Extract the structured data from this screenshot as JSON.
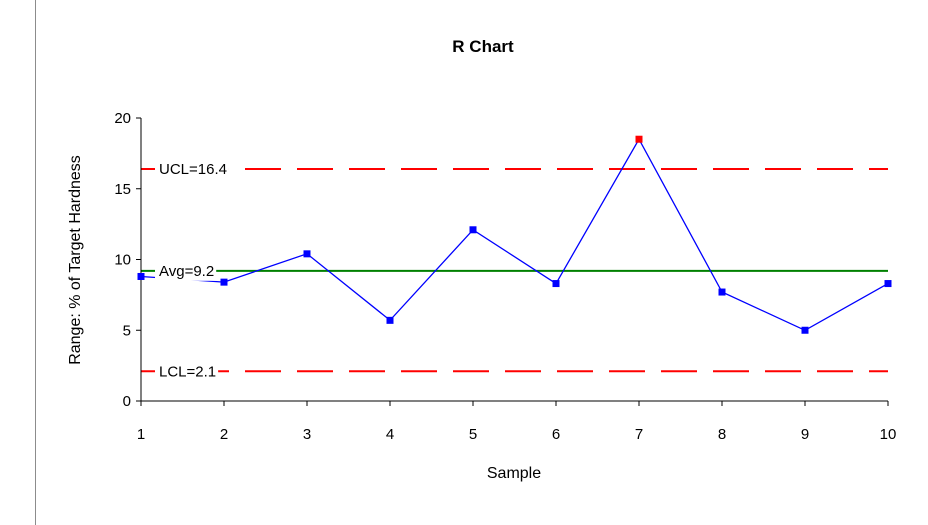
{
  "chart_data": {
    "type": "line",
    "title": "R Chart",
    "xlabel": "Sample",
    "ylabel": "Range: % of Target Hardness",
    "x": [
      1,
      2,
      3,
      4,
      5,
      6,
      7,
      8,
      9,
      10
    ],
    "xticks": [
      "1",
      "2",
      "3",
      "4",
      "5",
      "6",
      "7",
      "8",
      "9",
      "10"
    ],
    "xlim": [
      1,
      10
    ],
    "ylim": [
      0,
      20
    ],
    "yticks": [
      "0",
      "5",
      "10",
      "15",
      "20"
    ],
    "series": [
      {
        "values": [
          8.8,
          8.4,
          10.4,
          5.7,
          12.1,
          8.3,
          18.5,
          7.7,
          5.0,
          8.3
        ]
      }
    ],
    "point_colors": [
      "#0000ff",
      "#0000ff",
      "#0000ff",
      "#0000ff",
      "#0000ff",
      "#0000ff",
      "#ff0000",
      "#0000ff",
      "#0000ff",
      "#0000ff"
    ],
    "reference_lines": [
      {
        "label": "UCL=16.4",
        "value": 16.4,
        "color": "#ff0000",
        "style": "dashed"
      },
      {
        "label": "Avg=9.2",
        "value": 9.2,
        "color": "#008000",
        "style": "solid"
      },
      {
        "label": "LCL=2.1",
        "value": 2.1,
        "color": "#ff0000",
        "style": "dashed"
      }
    ],
    "line_color": "#0000ff",
    "grid": false,
    "legend": "none"
  }
}
